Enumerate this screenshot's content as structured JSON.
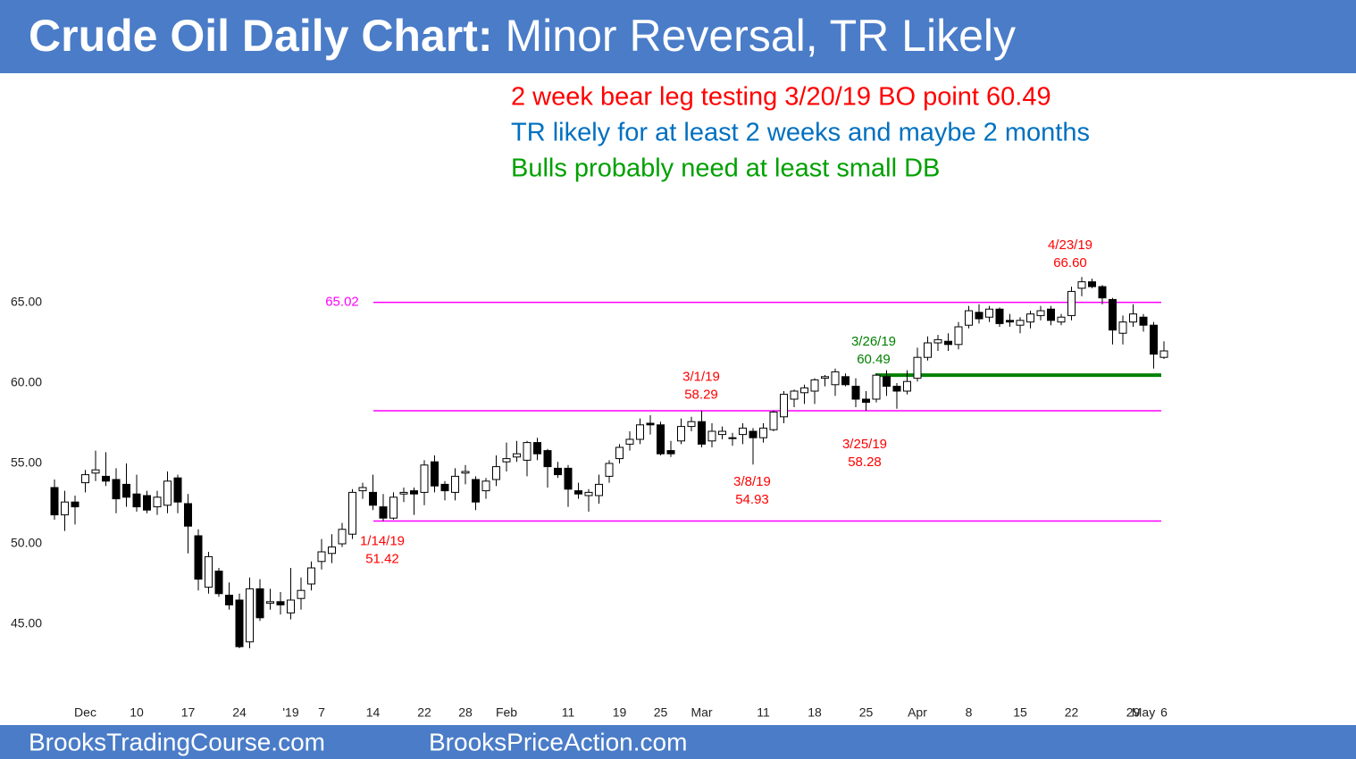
{
  "chart_data": {
    "type": "candlestick",
    "title": "Crude Oil Daily Chart:",
    "subtitle": "Minor Reversal, TR Likely",
    "notes": [
      {
        "text": "2 week bear leg testing 3/20/19 BO point 60.49",
        "color": "#ff0000"
      },
      {
        "text": "TR likely for at least 2 weeks and maybe 2 months",
        "color": "#0070c0"
      },
      {
        "text": "Bulls probably need at least small DB",
        "color": "#00a000"
      }
    ],
    "footer": [
      "BrooksTradingCourse.com",
      "BrooksPriceAction.com"
    ],
    "categories": [
      null,
      null,
      null,
      "Dec",
      null,
      null,
      null,
      null,
      "10",
      null,
      null,
      null,
      null,
      "17",
      null,
      null,
      null,
      null,
      "24",
      null,
      null,
      null,
      null,
      "'19",
      null,
      null,
      "7",
      null,
      null,
      null,
      null,
      "14",
      null,
      null,
      null,
      null,
      "22",
      null,
      null,
      null,
      "28",
      null,
      null,
      null,
      "Feb",
      null,
      null,
      null,
      null,
      null,
      "11",
      null,
      null,
      null,
      null,
      "19",
      null,
      null,
      null,
      "25",
      null,
      null,
      null,
      "Mar",
      null,
      null,
      null,
      null,
      null,
      "11",
      null,
      null,
      null,
      null,
      "18",
      null,
      null,
      null,
      null,
      "25",
      null,
      null,
      null,
      null,
      "Apr",
      null,
      null,
      null,
      null,
      "8",
      null,
      null,
      null,
      null,
      "15",
      null,
      null,
      null,
      null,
      "22",
      null,
      null,
      null,
      null,
      null,
      "29",
      "May",
      null,
      "6"
    ],
    "open": [
      53.5,
      51.8,
      52.6,
      53.8,
      54.4,
      54.2,
      54.0,
      53.7,
      53.1,
      53.0,
      52.3,
      52.4,
      54.1,
      52.5,
      50.5,
      47.3,
      48.3,
      46.8,
      46.5,
      43.9,
      47.2,
      46.3,
      46.4,
      45.7,
      46.6,
      47.5,
      48.9,
      49.4,
      50.0,
      50.6,
      53.3,
      53.2,
      52.3,
      51.6,
      53.1,
      53.3,
      53.2,
      55.1,
      53.7,
      53.2,
      54.4,
      54.0,
      53.3,
      54.0,
      55.1,
      55.4,
      55.2,
      56.3,
      55.8,
      54.7,
      54.7,
      53.3,
      53.0,
      53.0,
      54.2,
      55.3,
      56.2,
      56.5,
      57.5,
      57.4,
      55.8,
      56.4,
      57.3,
      57.6,
      56.4,
      56.8,
      56.6,
      56.8,
      57.0,
      56.6,
      57.1,
      57.9,
      59.0,
      59.4,
      59.5,
      60.3,
      59.9,
      60.4,
      59.8,
      59.0,
      59.0,
      60.4,
      59.8,
      59.5,
      60.3,
      61.6,
      62.5,
      62.6,
      62.4,
      63.6,
      64.4,
      64.1,
      64.6,
      63.9,
      63.6,
      63.8,
      64.2,
      64.6,
      63.8,
      64.2,
      65.9,
      66.3,
      66.0,
      65.2,
      63.1,
      63.8,
      64.1,
      63.6,
      61.6
    ],
    "high": [
      54,
      53.3,
      53,
      54.6,
      55.8,
      55.7,
      54.7,
      55.0,
      54.3,
      53.3,
      53.3,
      54.5,
      54.3,
      53.1,
      50.9,
      49.5,
      48.5,
      47.6,
      46.9,
      47.9,
      47.8,
      47.2,
      47.0,
      48.5,
      47.9,
      48.9,
      50.3,
      50.6,
      51.3,
      53.4,
      53.8,
      54.3,
      53.1,
      53.2,
      53.5,
      53.5,
      55.2,
      55.5,
      53.9,
      54.7,
      54.9,
      54.2,
      54.1,
      55.5,
      56.3,
      56.4,
      56.4,
      56.6,
      55.9,
      55.1,
      54.9,
      53.8,
      53.4,
      54.3,
      55.2,
      56.2,
      57.0,
      57.8,
      58.0,
      57.6,
      56.4,
      57.8,
      57.9,
      58.29,
      57.5,
      57.3,
      56.9,
      57.5,
      57.2,
      57.5,
      58.3,
      59.5,
      59.6,
      59.9,
      60.3,
      60.5,
      60.9,
      60.6,
      60.3,
      59.5,
      60.6,
      60.8,
      60.0,
      60.8,
      62.2,
      62.9,
      63.0,
      63.1,
      63.8,
      64.8,
      64.9,
      64.8,
      64.7,
      64.3,
      64.1,
      64.5,
      64.8,
      64.8,
      64.3,
      66.0,
      66.6,
      66.5,
      66.1,
      65.3,
      64.2,
      64.9,
      64.3,
      63.8,
      62.6
    ],
    "low": [
      51.5,
      50.8,
      51.2,
      53.2,
      53.9,
      53.6,
      51.9,
      52.3,
      52.0,
      51.9,
      51.8,
      51.9,
      51.9,
      49.4,
      47.1,
      46.9,
      46.7,
      45.9,
      43.5,
      43.5,
      45.2,
      45.9,
      45.6,
      45.3,
      45.9,
      47.1,
      48.4,
      48.8,
      49.8,
      50.3,
      52.8,
      52.1,
      51.42,
      51.5,
      52.6,
      51.8,
      52.4,
      53.2,
      52.7,
      52.7,
      53.7,
      52.1,
      52.8,
      53.6,
      54.5,
      55.1,
      54.2,
      55.2,
      53.5,
      54.1,
      52.3,
      52.8,
      52.0,
      52.5,
      53.8,
      55.0,
      55.8,
      56.2,
      56.8,
      55.5,
      55.4,
      56.2,
      57.0,
      56.0,
      56.0,
      56.5,
      56.1,
      56.2,
      54.93,
      56.3,
      57.0,
      57.5,
      58.5,
      58.7,
      58.7,
      59.8,
      59.2,
      59.8,
      58.5,
      58.28,
      58.8,
      59.2,
      58.4,
      59.3,
      60.1,
      61.4,
      62.0,
      62.0,
      62.1,
      63.4,
      63.7,
      63.8,
      63.5,
      63.5,
      63.1,
      63.4,
      63.9,
      63.6,
      63.6,
      63.9,
      65.4,
      65.9,
      64.9,
      62.4,
      62.4,
      63.5,
      63.2,
      60.9,
      61.5
    ],
    "close": [
      51.8,
      52.6,
      52.3,
      54.3,
      54.6,
      53.9,
      52.8,
      52.9,
      52.3,
      52.1,
      52.9,
      53.9,
      52.6,
      51.1,
      47.8,
      49.2,
      46.9,
      46.2,
      43.6,
      47.2,
      45.4,
      46.4,
      46.2,
      46.5,
      47.1,
      48.5,
      49.5,
      49.8,
      50.9,
      53.2,
      53.5,
      52.4,
      51.6,
      52.9,
      53.2,
      53.1,
      54.9,
      53.6,
      53.3,
      54.2,
      54.5,
      52.6,
      53.9,
      54.8,
      55.3,
      55.6,
      56.3,
      55.6,
      54.8,
      54.3,
      53.4,
      53.1,
      53.2,
      53.7,
      55.0,
      56.0,
      56.5,
      57.4,
      57.4,
      55.6,
      55.6,
      57.3,
      57.6,
      56.2,
      57.0,
      57.0,
      56.6,
      57.2,
      56.6,
      57.2,
      58.2,
      59.3,
      59.5,
      59.7,
      60.2,
      60.4,
      60.7,
      59.9,
      59.0,
      58.8,
      60.49,
      59.8,
      59.5,
      60.1,
      61.6,
      62.5,
      62.7,
      62.4,
      63.5,
      64.5,
      64.0,
      64.6,
      63.7,
      63.8,
      63.9,
      64.3,
      64.5,
      63.9,
      64.1,
      65.7,
      66.3,
      66.0,
      65.3,
      63.3,
      63.8,
      64.3,
      63.6,
      61.8,
      62.0
    ],
    "ylim": [
      40.5,
      71
    ],
    "yticks": [
      {
        "value": 45,
        "label": "45.00"
      },
      {
        "value": 50,
        "label": "50.00"
      },
      {
        "value": 55,
        "label": "55.00"
      },
      {
        "value": 60,
        "label": "60.00"
      },
      {
        "value": 65,
        "label": "65.00"
      }
    ],
    "levels": [
      {
        "value": 65.02,
        "label": "65.02",
        "color": "#ff00ff"
      },
      {
        "value": 58.28,
        "color": "#ff00ff"
      },
      {
        "value": 51.42,
        "color": "#ff00ff"
      },
      {
        "value": 60.49,
        "color": "#008000"
      }
    ],
    "annotations": [
      {
        "date": "4/23/19",
        "value": 66.6,
        "value_label": "66.60",
        "color": "#ff0000"
      },
      {
        "date": "3/26/19",
        "value": 60.49,
        "value_label": "60.49",
        "color": "#008000"
      },
      {
        "date": "3/1/19",
        "value": 58.29,
        "value_label": "58.29",
        "color": "#ff0000"
      },
      {
        "date": "3/25/19",
        "value": 58.28,
        "value_label": "58.28",
        "color": "#ff0000"
      },
      {
        "date": "3/8/19",
        "value": 54.93,
        "value_label": "54.93",
        "color": "#ff0000"
      },
      {
        "date": "1/14/19",
        "value": 51.42,
        "value_label": "51.42",
        "color": "#ff0000"
      }
    ]
  }
}
